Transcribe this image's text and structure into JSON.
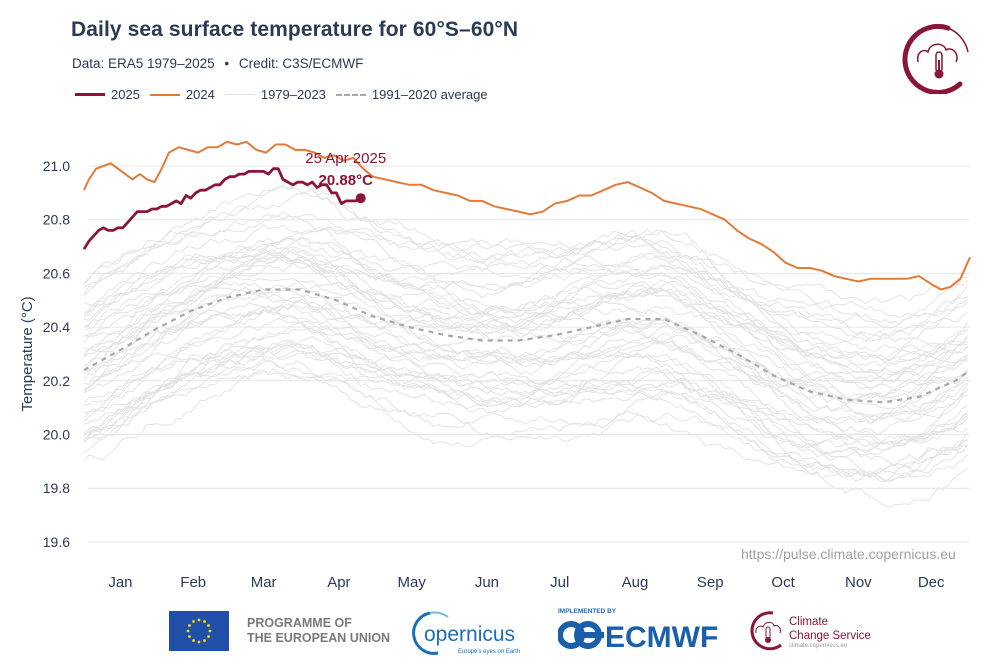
{
  "header": {
    "title": "Daily sea surface temperature for 60°S–60°N",
    "subtitle_data": "Data: ERA5 1979–2025",
    "subtitle_separator": "•",
    "subtitle_credit": "Credit: C3S/ECMWF"
  },
  "legend": [
    {
      "label": "2025",
      "color": "#8a1538",
      "style": "solid-thick"
    },
    {
      "label": "2024",
      "color": "#e07b39",
      "style": "solid"
    },
    {
      "label": "1979–2023",
      "color": "#e0e0e0",
      "style": "solid-thin"
    },
    {
      "label": "1991–2020 average",
      "color": "#a8a8a8",
      "style": "dashed"
    }
  ],
  "annotation": {
    "date": "25 Apr 2025",
    "value": "20.88°C"
  },
  "footer": {
    "url": "https://pulse.climate.copernicus.eu",
    "eu_line1": "PROGRAMME OF",
    "eu_line2": "THE EUROPEAN UNION",
    "copernicus_name": "opernicus",
    "copernicus_tagline": "Europe's eyes on Earth",
    "implemented_by": "IMPLEMENTED BY",
    "ecmwf": "ECMWF",
    "c3s_line1": "Climate",
    "c3s_line2": "Change Service",
    "c3s_url": "climate.copernicus.eu"
  },
  "colors": {
    "y2025": "#8a1538",
    "y2024": "#e07b39",
    "historical": "#e3e3e3",
    "average": "#a8a8a8",
    "grid": "#e6e6e6",
    "text": "#2b3a55"
  },
  "chart_data": {
    "type": "line",
    "title": "Daily sea surface temperature for 60°S–60°N",
    "xlabel": "",
    "ylabel": "Temperature (°C)",
    "ylim": [
      19.55,
      21.15
    ],
    "yticks": [
      19.6,
      19.8,
      20.0,
      20.2,
      20.4,
      20.6,
      20.8,
      21.0
    ],
    "ytick_labels": [
      "19.6",
      "19.8",
      "20.0",
      "20.2",
      "20.4",
      "20.6",
      "20.8",
      "21.0"
    ],
    "x_unit": "day of year",
    "xlim": [
      1,
      366
    ],
    "xtick_positions": [
      16,
      46,
      75,
      106,
      136,
      167,
      197,
      228,
      259,
      289,
      320,
      350
    ],
    "xtick_labels": [
      "Jan",
      "Feb",
      "Mar",
      "Apr",
      "May",
      "Jun",
      "Jul",
      "Aug",
      "Sep",
      "Oct",
      "Nov",
      "Dec"
    ],
    "grid": true,
    "legend_position": "top-left",
    "series": [
      {
        "name": "2024",
        "x": [
          1,
          3,
          6,
          9,
          12,
          15,
          18,
          21,
          24,
          27,
          30,
          33,
          36,
          40,
          44,
          48,
          52,
          56,
          60,
          64,
          68,
          72,
          76,
          80,
          84,
          88,
          92,
          96,
          100,
          104,
          108,
          112,
          116,
          120,
          125,
          130,
          135,
          140,
          145,
          150,
          155,
          160,
          165,
          170,
          175,
          180,
          185,
          190,
          195,
          200,
          205,
          210,
          215,
          220,
          225,
          230,
          235,
          240,
          245,
          250,
          255,
          260,
          265,
          270,
          275,
          280,
          285,
          290,
          295,
          300,
          305,
          310,
          315,
          320,
          325,
          330,
          335,
          340,
          345,
          350,
          354,
          358,
          362,
          366
        ],
        "values": [
          20.91,
          20.95,
          20.99,
          21.0,
          21.01,
          20.99,
          20.97,
          20.95,
          20.97,
          20.95,
          20.94,
          20.99,
          21.05,
          21.07,
          21.06,
          21.05,
          21.07,
          21.07,
          21.09,
          21.08,
          21.09,
          21.06,
          21.05,
          21.08,
          21.08,
          21.06,
          21.06,
          21.05,
          21.03,
          21.04,
          21.02,
          21.03,
          20.99,
          20.96,
          20.95,
          20.94,
          20.93,
          20.93,
          20.91,
          20.9,
          20.89,
          20.87,
          20.87,
          20.85,
          20.84,
          20.83,
          20.82,
          20.83,
          20.86,
          20.87,
          20.89,
          20.89,
          20.91,
          20.93,
          20.94,
          20.92,
          20.9,
          20.87,
          20.86,
          20.85,
          20.84,
          20.82,
          20.8,
          20.76,
          20.73,
          20.71,
          20.68,
          20.64,
          20.62,
          20.62,
          20.61,
          20.59,
          20.58,
          20.57,
          20.58,
          20.58,
          20.58,
          20.58,
          20.59,
          20.56,
          20.54,
          20.55,
          20.58,
          20.66
        ]
      },
      {
        "name": "2025",
        "x": [
          1,
          3,
          5,
          7,
          9,
          11,
          13,
          15,
          17,
          19,
          21,
          23,
          25,
          27,
          29,
          31,
          33,
          35,
          37,
          39,
          41,
          43,
          45,
          47,
          49,
          51,
          53,
          55,
          57,
          59,
          61,
          63,
          65,
          67,
          69,
          71,
          73,
          75,
          77,
          79,
          81,
          83,
          85,
          87,
          89,
          91,
          93,
          95,
          97,
          99,
          101,
          103,
          105,
          107,
          109,
          111,
          113,
          115
        ],
        "values": [
          20.69,
          20.72,
          20.74,
          20.76,
          20.77,
          20.76,
          20.76,
          20.77,
          20.77,
          20.79,
          20.81,
          20.83,
          20.83,
          20.83,
          20.84,
          20.84,
          20.85,
          20.85,
          20.86,
          20.87,
          20.86,
          20.89,
          20.88,
          20.9,
          20.91,
          20.91,
          20.92,
          20.93,
          20.93,
          20.95,
          20.96,
          20.96,
          20.97,
          20.97,
          20.98,
          20.98,
          20.98,
          20.98,
          20.97,
          20.99,
          20.99,
          20.95,
          20.94,
          20.93,
          20.94,
          20.94,
          20.93,
          20.94,
          20.92,
          20.93,
          20.93,
          20.9,
          20.9,
          20.86,
          20.87,
          20.87,
          20.87,
          20.88
        ]
      },
      {
        "name": "1991–2020 average",
        "x": [
          1,
          15,
          30,
          45,
          60,
          75,
          90,
          105,
          120,
          135,
          150,
          165,
          180,
          195,
          210,
          225,
          240,
          255,
          270,
          285,
          300,
          315,
          330,
          345,
          360,
          366
        ],
        "values": [
          20.24,
          20.31,
          20.39,
          20.46,
          20.51,
          20.54,
          20.54,
          20.5,
          20.44,
          20.4,
          20.37,
          20.35,
          20.35,
          20.37,
          20.4,
          20.43,
          20.43,
          20.37,
          20.3,
          20.22,
          20.16,
          20.13,
          20.12,
          20.14,
          20.2,
          20.24
        ]
      },
      {
        "name": "1979–2023",
        "note": "45 individual years drawn as thin grey lines, range approx 19.57–20.99 °C",
        "year_count": 45,
        "value_range": [
          19.57,
          20.99
        ]
      }
    ],
    "annotations": [
      {
        "x": 115,
        "y": 20.88,
        "label": "25 Apr 2025",
        "value_label": "20.88°C",
        "marker": "dot"
      }
    ]
  }
}
